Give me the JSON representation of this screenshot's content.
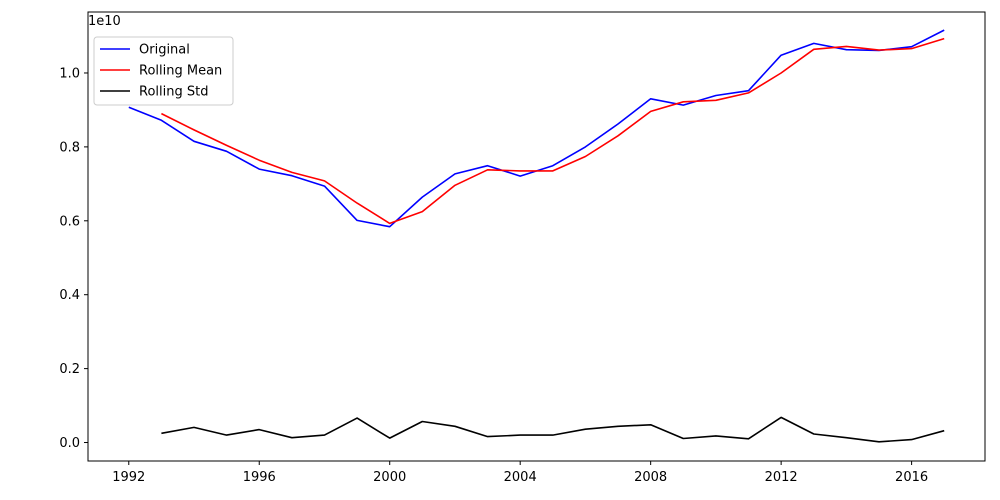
{
  "chart_data": {
    "type": "line",
    "title": "",
    "xlabel": "",
    "ylabel": "",
    "y_scale_label": "1e10",
    "xlim": [
      1990.75,
      2018.25
    ],
    "ylim": [
      -0.05,
      1.165
    ],
    "grid": false,
    "legend_position": "upper-left",
    "x_ticks": [
      1992,
      1996,
      2000,
      2004,
      2008,
      2012,
      2016
    ],
    "x_tick_labels": [
      "1992",
      "1996",
      "2000",
      "2004",
      "2008",
      "2012",
      "2016"
    ],
    "y_ticks": [
      0.0,
      0.2,
      0.4,
      0.6,
      0.8,
      1.0
    ],
    "y_tick_labels": [
      "0.0",
      "0.2",
      "0.4",
      "0.6",
      "0.8",
      "1.0"
    ],
    "series": [
      {
        "name": "Original",
        "color": "#0000ff",
        "x": [
          1992,
          1993,
          1994,
          1995,
          1996,
          1997,
          1998,
          1999,
          2000,
          2001,
          2002,
          2003,
          2004,
          2005,
          2006,
          2007,
          2008,
          2009,
          2010,
          2011,
          2012,
          2013,
          2014,
          2015,
          2016,
          2017
        ],
        "values": [
          0.907,
          0.872,
          0.815,
          0.788,
          0.74,
          0.722,
          0.694,
          0.601,
          0.584,
          0.664,
          0.727,
          0.749,
          0.721,
          0.749,
          0.8,
          0.862,
          0.93,
          0.913,
          0.939,
          0.952,
          1.048,
          1.08,
          1.063,
          1.061,
          1.071,
          1.116
        ]
      },
      {
        "name": "Rolling Mean",
        "color": "#ff0000",
        "x": [
          1993,
          1994,
          1995,
          1996,
          1997,
          1998,
          1999,
          2000,
          2001,
          2002,
          2003,
          2004,
          2005,
          2006,
          2007,
          2008,
          2009,
          2010,
          2011,
          2012,
          2013,
          2014,
          2015,
          2016,
          2017
        ],
        "values": [
          0.89,
          0.846,
          0.804,
          0.764,
          0.731,
          0.708,
          0.648,
          0.593,
          0.625,
          0.696,
          0.738,
          0.735,
          0.735,
          0.774,
          0.83,
          0.896,
          0.922,
          0.926,
          0.946,
          1.0,
          1.064,
          1.072,
          1.062,
          1.066,
          1.093
        ]
      },
      {
        "name": "Rolling Std",
        "color": "#000000",
        "x": [
          1993,
          1994,
          1995,
          1996,
          1997,
          1998,
          1999,
          2000,
          2001,
          2002,
          2003,
          2004,
          2005,
          2006,
          2007,
          2008,
          2009,
          2010,
          2011,
          2012,
          2013,
          2014,
          2015,
          2016,
          2017
        ],
        "values": [
          0.025,
          0.041,
          0.02,
          0.035,
          0.013,
          0.02,
          0.066,
          0.012,
          0.057,
          0.044,
          0.016,
          0.02,
          0.02,
          0.036,
          0.044,
          0.048,
          0.011,
          0.018,
          0.01,
          0.068,
          0.023,
          0.013,
          0.002,
          0.008,
          0.032
        ]
      }
    ]
  }
}
